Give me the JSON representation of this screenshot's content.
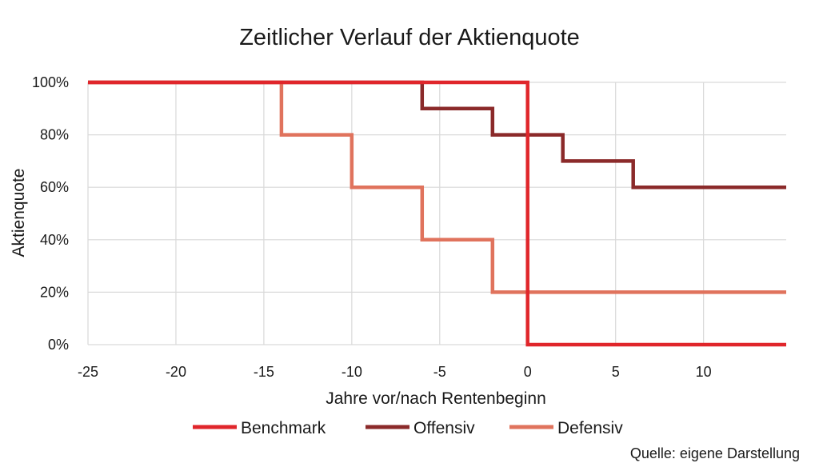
{
  "chart_data": {
    "type": "line",
    "title": "Zeitlicher Verlauf der Aktienquote",
    "xlabel": "Jahre vor/nach Rentenbeginn",
    "ylabel": "Aktienquote",
    "xlim": [
      -25,
      14.7
    ],
    "ylim": [
      0,
      100
    ],
    "x_ticks": [
      -25,
      -20,
      -15,
      -10,
      -5,
      0,
      5,
      10
    ],
    "y_ticks": [
      0,
      20,
      40,
      60,
      80,
      100
    ],
    "y_tick_labels": [
      "0%",
      "20%",
      "40%",
      "60%",
      "80%",
      "100%"
    ],
    "grid": true,
    "legend_position": "bottom",
    "line_style": "step",
    "series": [
      {
        "name": "Benchmark",
        "color": "#e0262b",
        "points": [
          [
            -25,
            100
          ],
          [
            0,
            100
          ],
          [
            0,
            0
          ],
          [
            14.7,
            0
          ]
        ]
      },
      {
        "name": "Offensiv",
        "color": "#8b2a2a",
        "points": [
          [
            -25,
            100
          ],
          [
            -6,
            100
          ],
          [
            -6,
            90
          ],
          [
            -2,
            90
          ],
          [
            -2,
            80
          ],
          [
            2,
            80
          ],
          [
            2,
            70
          ],
          [
            6,
            70
          ],
          [
            6,
            60
          ],
          [
            14.7,
            60
          ]
        ]
      },
      {
        "name": "Defensiv",
        "color": "#e0735d",
        "points": [
          [
            -25,
            100
          ],
          [
            -14,
            100
          ],
          [
            -14,
            80
          ],
          [
            -10,
            80
          ],
          [
            -10,
            60
          ],
          [
            -6,
            60
          ],
          [
            -6,
            40
          ],
          [
            -2,
            40
          ],
          [
            -2,
            20
          ],
          [
            14.7,
            20
          ]
        ]
      }
    ],
    "source": "Quelle: eigene Darstellung"
  }
}
